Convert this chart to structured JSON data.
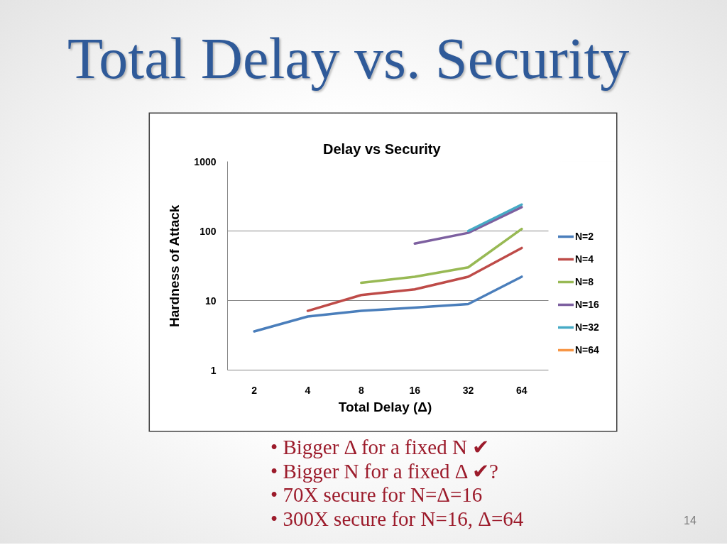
{
  "chart_data": {
    "type": "line",
    "title": "Total Delay vs. Security",
    "subtitle": "Delay vs Security",
    "xlabel": "Total Delay (Δ)",
    "ylabel": "Hardness of Attack",
    "categories": [
      "2",
      "4",
      "8",
      "16",
      "32",
      "64"
    ],
    "series": [
      {
        "name": "N=2",
        "color": "#4a7ebb",
        "values": [
          3.6,
          5.9,
          7.1,
          7.9,
          8.9,
          22
        ]
      },
      {
        "name": "N=4",
        "color": "#be4b48",
        "values": [
          null,
          7.1,
          12,
          14.5,
          22,
          57
        ]
      },
      {
        "name": "N=8",
        "color": "#98b954",
        "values": [
          null,
          null,
          18,
          22,
          30,
          107
        ]
      },
      {
        "name": "N=16",
        "color": "#7d60a0",
        "values": [
          null,
          null,
          null,
          66,
          94,
          220
        ]
      },
      {
        "name": "N=32",
        "color": "#46aac5",
        "values": [
          null,
          null,
          null,
          null,
          100,
          240
        ]
      },
      {
        "name": "N=64",
        "color": "#f79646",
        "values": [
          null,
          null,
          null,
          null,
          null,
          null
        ]
      }
    ],
    "ylim": [
      1,
      1000
    ],
    "yticks": [
      1,
      10,
      100,
      1000
    ],
    "log": true,
    "grid": "y",
    "legend": "right",
    "line_style": "solid",
    "annotations": [
      "• Bigger Δ for a fixed N ✔",
      "• Bigger N for a fixed Δ ✔?",
      "• 70X secure for N=Δ=16",
      "• 300X secure for N=16, Δ=64",
      "14"
    ]
  }
}
